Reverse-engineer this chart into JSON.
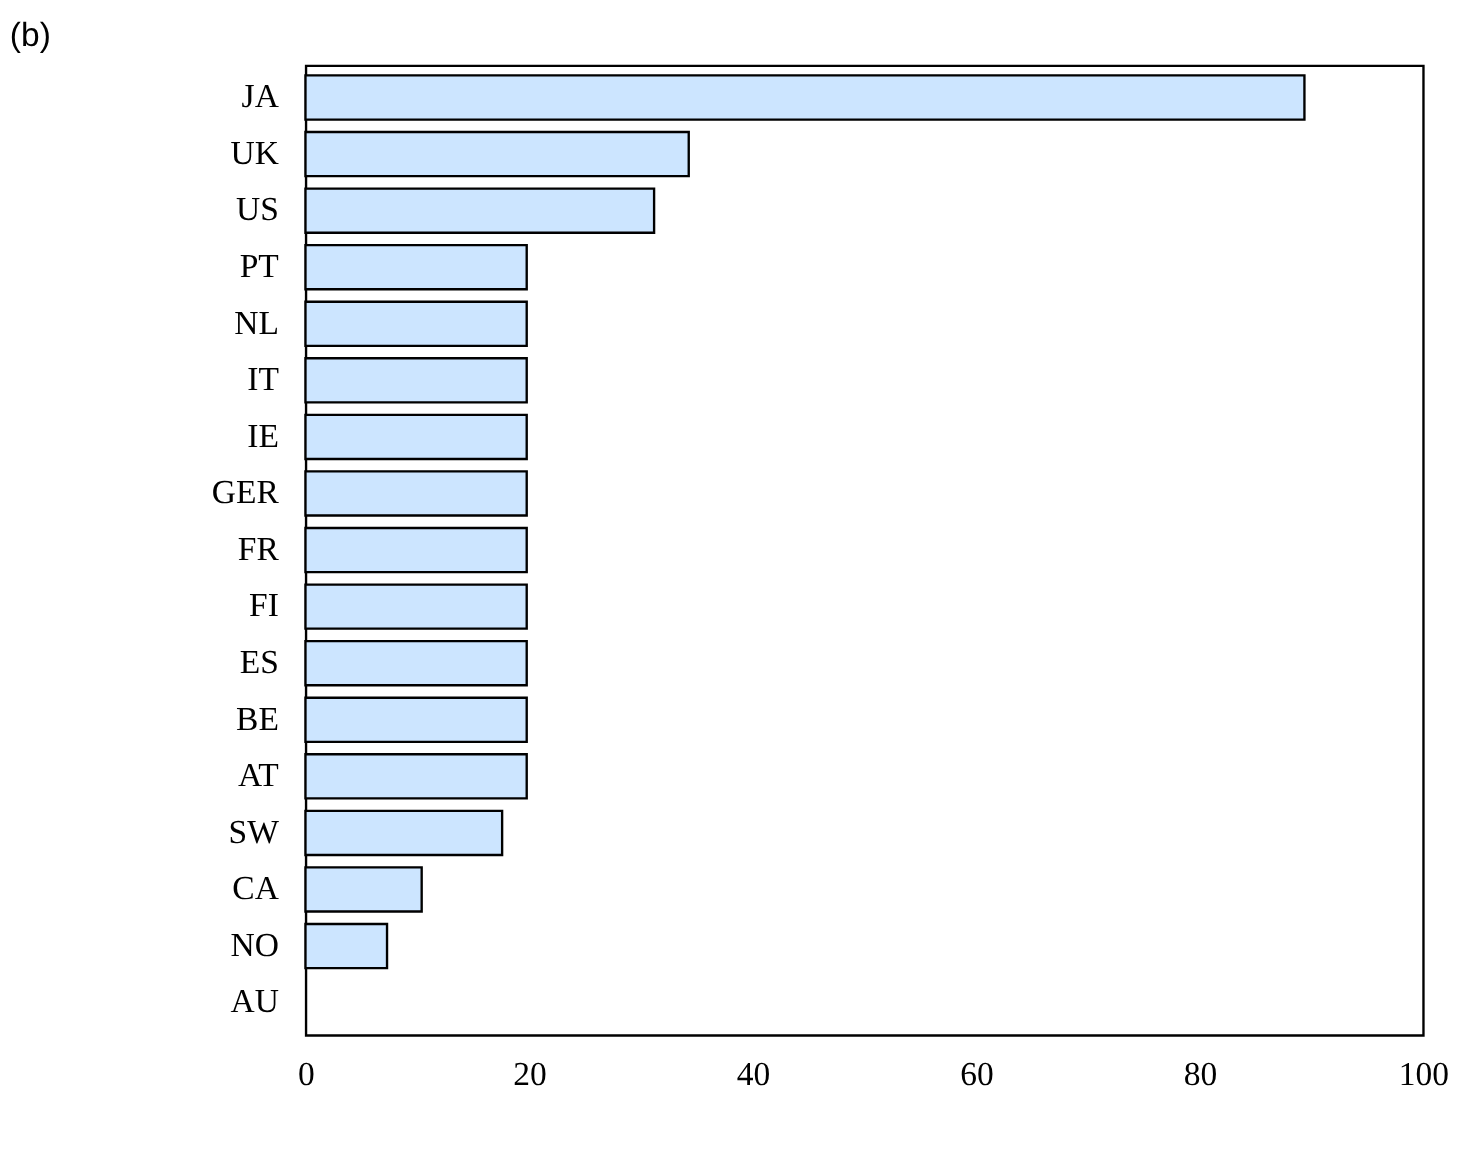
{
  "chart_data": {
    "type": "bar",
    "orientation": "horizontal",
    "title": "(b)",
    "categories": [
      "JA",
      "UK",
      "US",
      "PT",
      "NL",
      "IT",
      "IE",
      "GER",
      "FR",
      "FI",
      "ES",
      "BE",
      "AT",
      "SW",
      "CA",
      "NO",
      "AU"
    ],
    "values": [
      89.4,
      34.3,
      31.2,
      19.8,
      19.8,
      19.8,
      19.8,
      19.8,
      19.8,
      19.8,
      19.8,
      19.8,
      19.8,
      17.6,
      10.4,
      7.3,
      0
    ],
    "color": "#cce5ff",
    "xlim": [
      0,
      100
    ],
    "xticks": [
      0,
      20,
      40,
      60,
      80,
      100
    ],
    "grid": false
  }
}
